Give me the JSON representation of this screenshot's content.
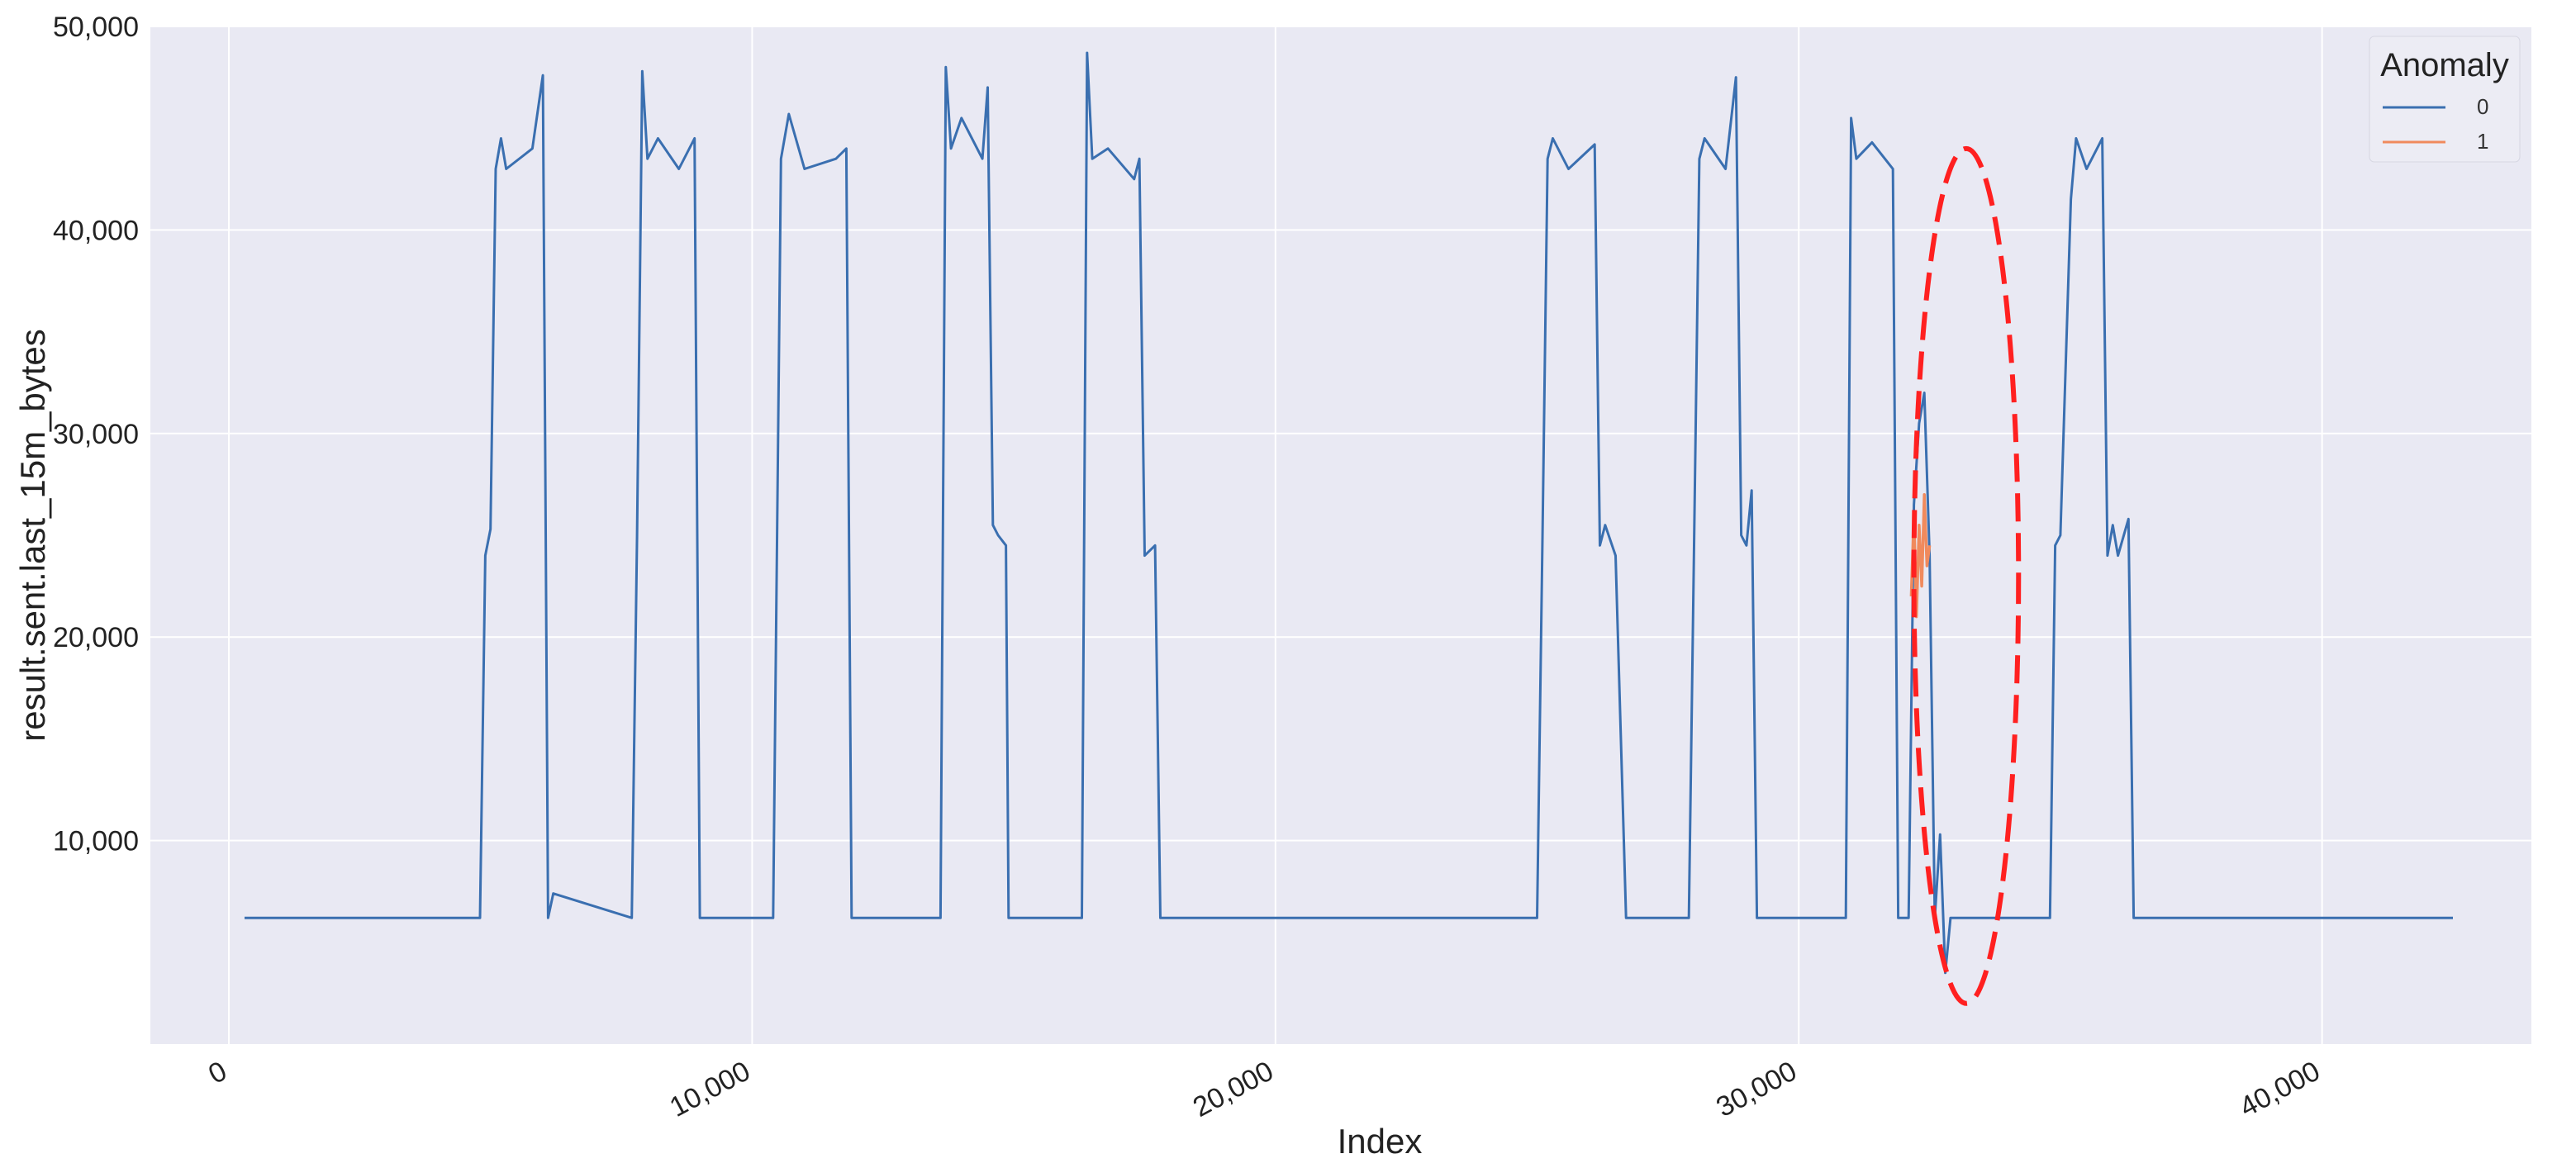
{
  "chart_data": {
    "type": "line",
    "title": "",
    "xlabel": "Index",
    "ylabel": "result.sent.last_15m_bytes",
    "xlim": [
      -1500,
      44000
    ],
    "ylim": [
      0,
      50000
    ],
    "xticks": [
      0,
      10000,
      20000,
      30000,
      40000
    ],
    "xtick_labels": [
      "0",
      "10,000",
      "20,000",
      "30,000",
      "40,000"
    ],
    "yticks": [
      10000,
      20000,
      30000,
      40000,
      50000
    ],
    "ytick_labels": [
      "10,000",
      "20,000",
      "30,000",
      "40,000",
      "50,000"
    ],
    "grid": true,
    "legend": {
      "title": "Anomaly",
      "placement": "top-right"
    },
    "colors": {
      "series0": "#3a6fb0",
      "series1": "#f08a5d",
      "highlight": "#ff2020",
      "background": "#e9e9f3"
    },
    "series": [
      {
        "name": "0",
        "x": [
          300,
          4800,
          4900,
          5000,
          5100,
          5200,
          5300,
          5800,
          6000,
          6100,
          6200,
          7700,
          7800,
          7900,
          8000,
          8200,
          8600,
          8900,
          9000,
          10400,
          10550,
          10700,
          11000,
          11600,
          11800,
          11900,
          13600,
          13700,
          13800,
          14000,
          14400,
          14500,
          14600,
          14700,
          14850,
          14900,
          16300,
          16400,
          16500,
          16800,
          17300,
          17400,
          17500,
          17700,
          17800,
          25000,
          25100,
          25200,
          25300,
          25600,
          26100,
          26200,
          26300,
          26500,
          26700,
          26800,
          27900,
          28000,
          28100,
          28200,
          28600,
          28800,
          28900,
          29000,
          29100,
          29200,
          30900,
          31000,
          31100,
          31400,
          31800,
          31900,
          32000,
          32100,
          32200,
          32300,
          32400,
          32500,
          32600,
          32700,
          32800,
          32900,
          33000,
          33300,
          33500,
          34800,
          34900,
          35000,
          35200,
          35300,
          35500,
          35800,
          35900,
          36000,
          36100,
          36300,
          36400,
          36500,
          42500
        ],
        "values": [
          6200,
          6200,
          24000,
          25300,
          43000,
          44500,
          43000,
          44000,
          47600,
          6200,
          7400,
          6200,
          25000,
          47800,
          43500,
          44500,
          43000,
          44500,
          6200,
          6200,
          43500,
          45700,
          43000,
          43500,
          44000,
          6200,
          6200,
          48000,
          44000,
          45500,
          43500,
          47000,
          25500,
          25000,
          24500,
          6200,
          6200,
          48700,
          43500,
          44000,
          42500,
          43500,
          24000,
          24500,
          6200,
          6200,
          24500,
          43500,
          44500,
          43000,
          44200,
          24500,
          25500,
          24000,
          6200,
          6200,
          6200,
          24500,
          43500,
          44500,
          43000,
          47500,
          25000,
          24500,
          27200,
          6200,
          6200,
          45500,
          43500,
          44300,
          43000,
          6200,
          6200,
          6200,
          26500,
          30500,
          32000,
          24000,
          6200,
          10300,
          3500,
          6200,
          6200,
          6200,
          6200,
          6200,
          24500,
          25000,
          41500,
          44500,
          43000,
          44500,
          24000,
          25500,
          24000,
          25800,
          6200,
          6200,
          6200
        ]
      },
      {
        "name": "1",
        "x": [
          32150,
          32200,
          32250,
          32300,
          32350,
          32400,
          32450,
          32500
        ],
        "values": [
          22000,
          26000,
          21000,
          25500,
          22500,
          27000,
          23500,
          24500
        ]
      }
    ],
    "annotations": [
      {
        "type": "dashed-ellipse",
        "cx": 33200,
        "cy": 23000,
        "rx": 1000,
        "ry": 21000
      }
    ]
  }
}
